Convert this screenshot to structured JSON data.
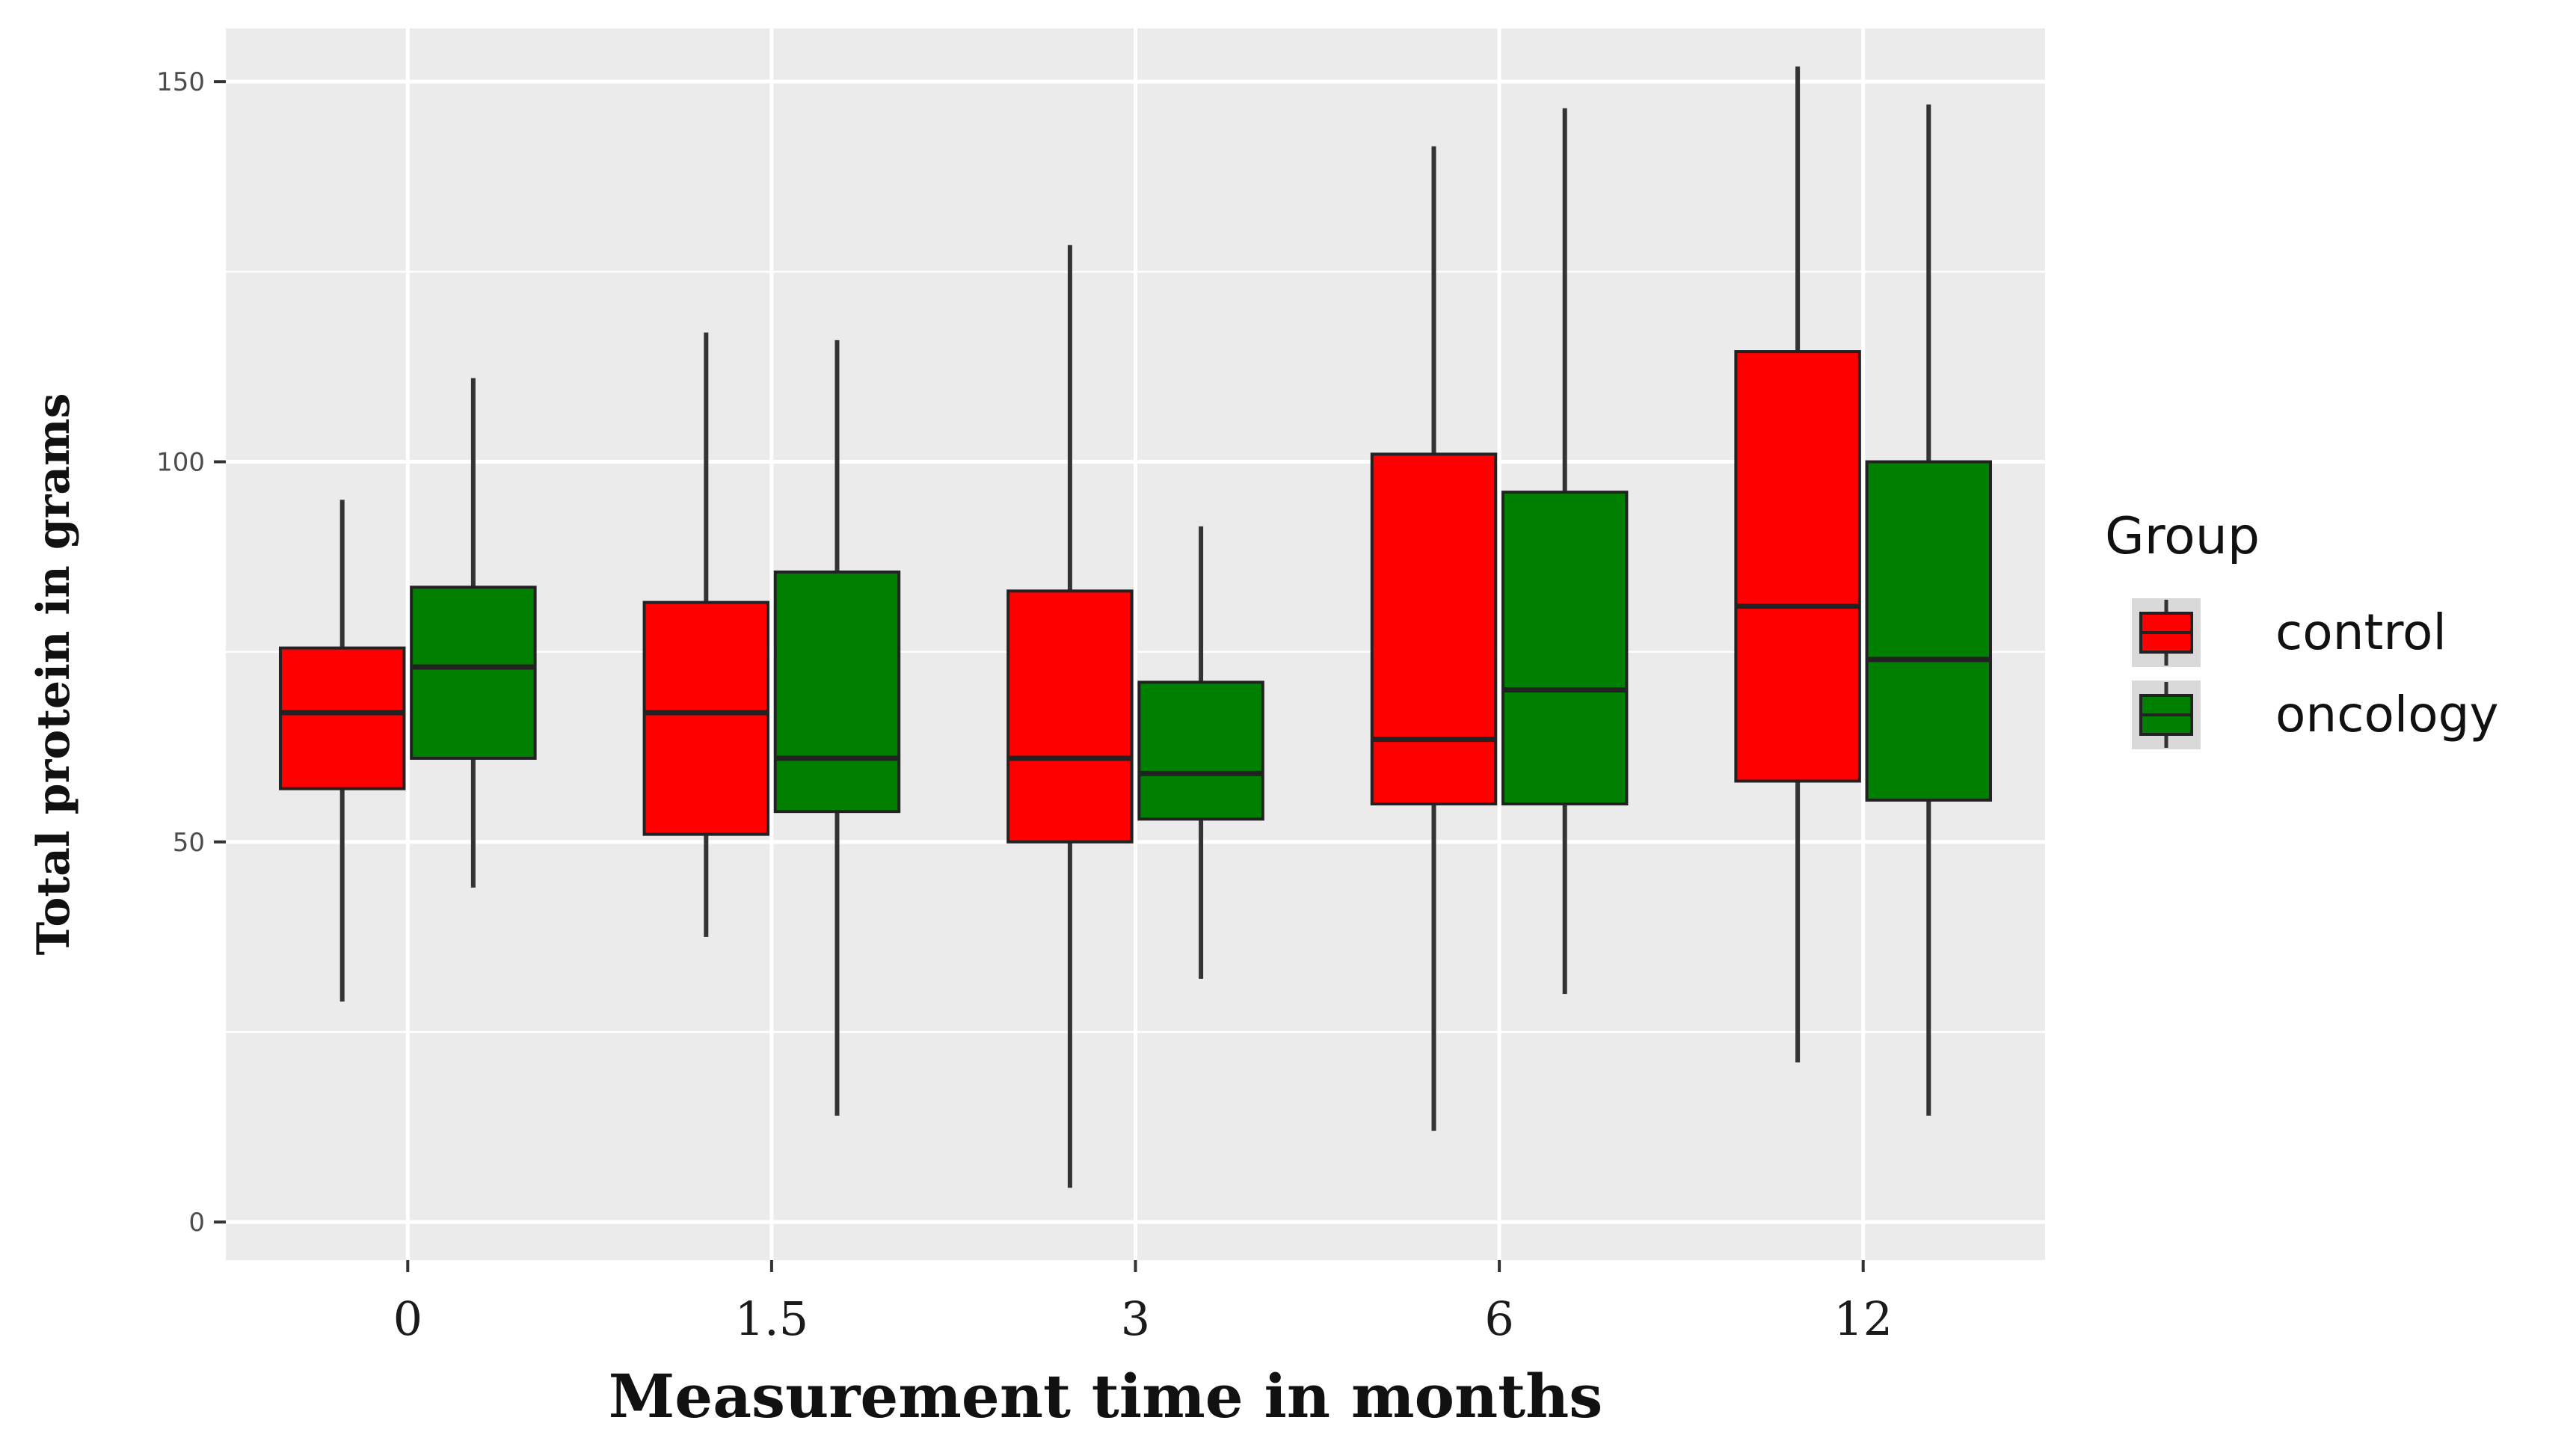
{
  "chart_data": {
    "type": "boxplot",
    "title": "",
    "xlabel": "Measurement time in months",
    "ylabel": "Total protein in grams",
    "categories": [
      "0",
      "1.5",
      "3",
      "6",
      "12"
    ],
    "ylim": [
      -5,
      157
    ],
    "yticks": [
      0,
      50,
      100,
      150
    ],
    "grid": true,
    "legend": {
      "title": "Group",
      "placement": "right"
    },
    "series": [
      {
        "name": "control",
        "color": "#ff0000",
        "boxes": [
          {
            "whisker_low": 29,
            "q1": 57,
            "median": 67,
            "q3": 75.5,
            "whisker_high": 95
          },
          {
            "whisker_low": 37.5,
            "q1": 51,
            "median": 67,
            "q3": 81.5,
            "whisker_high": 117
          },
          {
            "whisker_low": 4.5,
            "q1": 50,
            "median": 61,
            "q3": 83,
            "whisker_high": 128.5
          },
          {
            "whisker_low": 12,
            "q1": 55,
            "median": 63.5,
            "q3": 101,
            "whisker_high": 141.5
          },
          {
            "whisker_low": 21,
            "q1": 58,
            "median": 81,
            "q3": 114.5,
            "whisker_high": 152
          }
        ]
      },
      {
        "name": "oncology",
        "color": "#008000",
        "boxes": [
          {
            "whisker_low": 44,
            "q1": 61,
            "median": 73,
            "q3": 83.5,
            "whisker_high": 111
          },
          {
            "whisker_low": 14,
            "q1": 54,
            "median": 61,
            "q3": 85.5,
            "whisker_high": 116
          },
          {
            "whisker_low": 32,
            "q1": 53,
            "median": 59,
            "q3": 71,
            "whisker_high": 91.5
          },
          {
            "whisker_low": 30,
            "q1": 55,
            "median": 70,
            "q3": 96,
            "whisker_high": 146.5
          },
          {
            "whisker_low": 14,
            "q1": 55.5,
            "median": 74,
            "q3": 100,
            "whisker_high": 147
          }
        ]
      }
    ],
    "colors": {
      "panel": "#ebebeb",
      "grid": "#ffffff",
      "whisker": "#333333"
    }
  }
}
